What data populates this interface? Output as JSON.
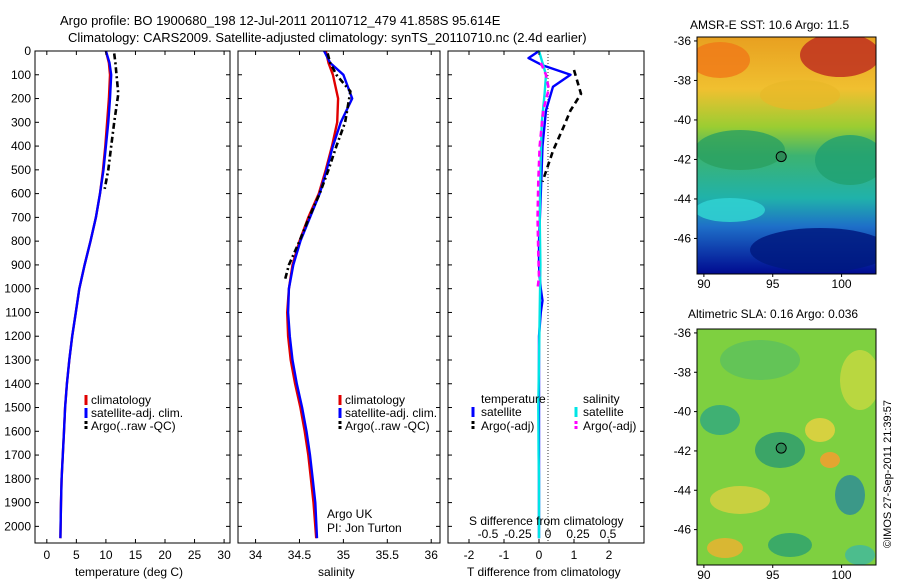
{
  "title": {
    "line1": "Argo profile: BO 1900680_198 12-Jul-2011 20110712_479 41.858S 95.614E",
    "line2": "Climatology: CARS2009. Satellite-adjusted climatology: synTS_20110710.nc (2.4d earlier)"
  },
  "credit": {
    "org": "Argo UK",
    "pi": "PI: Jon Turton"
  },
  "stamp": "©IMOS 27-Sep-2011 21:39:57",
  "colors": {
    "climatology": "#e00000",
    "satellite": "#0000ff",
    "argo": "#000000",
    "s_satellite": "#00e5e5",
    "s_argo": "#ff00ff"
  },
  "chart_data": [
    {
      "type": "line",
      "panel": "temperature",
      "xlabel": "temperature (deg C)",
      "ylabel": "",
      "xlim": [
        -2,
        31
      ],
      "ylim": [
        2070,
        0
      ],
      "xticks": [
        0,
        5,
        10,
        15,
        20,
        25,
        30
      ],
      "yticks": [
        0,
        100,
        200,
        300,
        400,
        500,
        600,
        700,
        800,
        900,
        1000,
        1100,
        1200,
        1300,
        1400,
        1500,
        1600,
        1700,
        1800,
        1900,
        2000
      ],
      "legend": [
        "climatology",
        "satellite-adj. clim.",
        "Argo(..raw -QC)"
      ],
      "series": [
        {
          "name": "climatology",
          "color": "#e00000",
          "dash": "",
          "x": [
            10.0,
            10.5,
            10.7,
            10.5,
            10.2,
            9.9,
            9.5,
            9.0,
            8.3,
            7.4,
            6.4,
            5.5,
            4.9,
            4.3,
            3.8,
            3.4,
            3.1,
            2.9,
            2.7,
            2.5,
            2.4,
            2.3
          ],
          "y": [
            0,
            50,
            100,
            200,
            300,
            400,
            500,
            600,
            700,
            800,
            900,
            1000,
            1100,
            1200,
            1300,
            1400,
            1500,
            1600,
            1700,
            1800,
            1900,
            2050
          ]
        },
        {
          "name": "satellite-adj. clim.",
          "color": "#0000ff",
          "dash": "",
          "x": [
            10.0,
            10.6,
            10.9,
            10.7,
            10.4,
            10.0,
            9.6,
            9.0,
            8.3,
            7.4,
            6.4,
            5.5,
            4.9,
            4.3,
            3.8,
            3.4,
            3.1,
            2.9,
            2.7,
            2.5,
            2.4,
            2.3
          ],
          "y": [
            0,
            50,
            100,
            200,
            300,
            400,
            500,
            600,
            700,
            800,
            900,
            1000,
            1100,
            1200,
            1300,
            1400,
            1500,
            1600,
            1700,
            1800,
            1900,
            2050
          ]
        },
        {
          "name": "Argo(..raw -QC)",
          "color": "#000000",
          "dash": "6,3,2,3",
          "x": [
            11.4,
            11.6,
            11.8,
            12.1,
            11.4,
            10.9,
            10.4,
            9.8
          ],
          "y": [
            10,
            50,
            100,
            180,
            300,
            400,
            500,
            580
          ]
        }
      ]
    },
    {
      "type": "line",
      "panel": "salinity",
      "xlabel": "salinity",
      "ylabel": "",
      "xlim": [
        33.8,
        36.1
      ],
      "ylim": [
        2070,
        0
      ],
      "xticks": [
        34,
        34.5,
        35,
        35.5,
        36
      ],
      "legend": [
        "climatology",
        "satellite-adj. clim.",
        "Argo(..raw -QC)"
      ],
      "series": [
        {
          "name": "climatology",
          "color": "#e00000",
          "dash": "",
          "x": [
            34.8,
            34.83,
            34.88,
            34.94,
            34.93,
            34.87,
            34.8,
            34.72,
            34.6,
            34.5,
            34.42,
            34.38,
            34.36,
            34.37,
            34.4,
            34.45,
            34.51,
            34.56,
            34.6,
            34.63,
            34.66,
            34.69
          ],
          "y": [
            0,
            50,
            100,
            200,
            300,
            400,
            500,
            600,
            700,
            800,
            900,
            1000,
            1100,
            1200,
            1300,
            1400,
            1500,
            1600,
            1700,
            1800,
            1900,
            2050
          ]
        },
        {
          "name": "satellite-adj. clim.",
          "color": "#0000ff",
          "dash": "",
          "x": [
            34.78,
            34.85,
            35.0,
            35.1,
            34.97,
            34.88,
            34.81,
            34.73,
            34.62,
            34.51,
            34.43,
            34.38,
            34.37,
            34.39,
            34.42,
            34.47,
            34.53,
            34.58,
            34.62,
            34.65,
            34.68,
            34.7
          ],
          "y": [
            0,
            50,
            100,
            200,
            300,
            400,
            500,
            600,
            700,
            800,
            900,
            1000,
            1100,
            1200,
            1300,
            1400,
            1500,
            1600,
            1700,
            1800,
            1900,
            2050
          ]
        },
        {
          "name": "Argo(..raw -QC)",
          "color": "#000000",
          "dash": "6,3,2,3",
          "x": [
            34.82,
            34.85,
            34.92,
            35.08,
            35.02,
            34.92,
            34.83,
            34.73,
            34.61,
            34.5,
            34.38,
            34.33
          ],
          "y": [
            10,
            50,
            100,
            170,
            300,
            400,
            500,
            600,
            700,
            800,
            900,
            970
          ]
        }
      ]
    },
    {
      "type": "line",
      "panel": "difference",
      "xlabel": "T difference from climatology",
      "xlabel_top": "S difference from climatology",
      "xlim": [
        -2.6,
        3.0
      ],
      "ylim": [
        2070,
        0
      ],
      "xticks": [
        -2,
        -1,
        0,
        1,
        2
      ],
      "xticks_s": [
        -0.5,
        -0.25,
        0,
        0.25,
        0.5
      ],
      "xticklabels_s": [
        "-0.5",
        "-0.25",
        "0",
        "0.25",
        "0.5"
      ],
      "legend_groups": {
        "temperature": [
          "satellite",
          "Argo(-adj)"
        ],
        "salinity": [
          "satellite",
          "Argo(-adj)"
        ]
      },
      "series": [
        {
          "name": "T satellite",
          "color": "#0000ff",
          "dash": "",
          "x": [
            0.0,
            -0.3,
            0.1,
            0.9,
            0.4,
            0.2,
            0.1,
            0.05,
            0.0,
            0.0,
            0.02,
            0.05,
            0.1,
            0.05,
            0.0,
            0.0,
            0.0,
            0.0,
            0.0,
            0.0
          ],
          "y": [
            0,
            30,
            60,
            100,
            150,
            250,
            400,
            600,
            800,
            900,
            950,
            1000,
            1050,
            1100,
            1200,
            1400,
            1600,
            1800,
            1900,
            2050
          ]
        },
        {
          "name": "T Argo(-adj)",
          "color": "#000000",
          "dash": "6,4",
          "x": [
            1.0,
            1.2,
            0.9,
            0.7,
            0.4,
            0.1
          ],
          "y": [
            80,
            180,
            250,
            320,
            420,
            550
          ]
        },
        {
          "name": "S satellite",
          "color": "#00e5e5",
          "dash": "",
          "x": [
            0.0,
            0.1,
            0.2,
            0.16,
            0.08,
            0.04,
            0.02,
            0.04,
            0.02,
            0.0,
            -0.02,
            -0.01,
            0.0,
            0.0,
            0.0
          ],
          "y": [
            0,
            50,
            100,
            180,
            300,
            500,
            700,
            900,
            1100,
            1300,
            1500,
            1700,
            1800,
            1900,
            2050
          ]
        },
        {
          "name": "S Argo(-adj)",
          "color": "#ff00ff",
          "dash": "6,4",
          "x": [
            0.05,
            0.2,
            0.28,
            0.12,
            0.02,
            -0.02,
            -0.04,
            -0.02,
            0.0,
            -0.04
          ],
          "y": [
            50,
            100,
            160,
            250,
            400,
            550,
            700,
            850,
            950,
            1000
          ]
        }
      ]
    },
    {
      "type": "heatmap",
      "panel": "sst_map",
      "title": "AMSR-E SST: 10.6 Argo: 11.5",
      "xlim": [
        89.5,
        102.5
      ],
      "ylim": [
        -47.8,
        -35.8
      ],
      "xticks": [
        90,
        95,
        100
      ],
      "yticks": [
        -36,
        -38,
        -40,
        -42,
        -44,
        -46
      ],
      "marker": {
        "lon": 95.614,
        "lat": -41.858
      }
    },
    {
      "type": "heatmap",
      "panel": "sla_map",
      "title": "Altimetric SLA: 0.16 Argo: 0.036",
      "xlim": [
        89.5,
        102.5
      ],
      "ylim": [
        -47.8,
        -35.8
      ],
      "xticks": [
        90,
        95,
        100
      ],
      "yticks": [
        -36,
        -38,
        -40,
        -42,
        -44,
        -46
      ],
      "marker": {
        "lon": 95.614,
        "lat": -41.858
      }
    }
  ]
}
